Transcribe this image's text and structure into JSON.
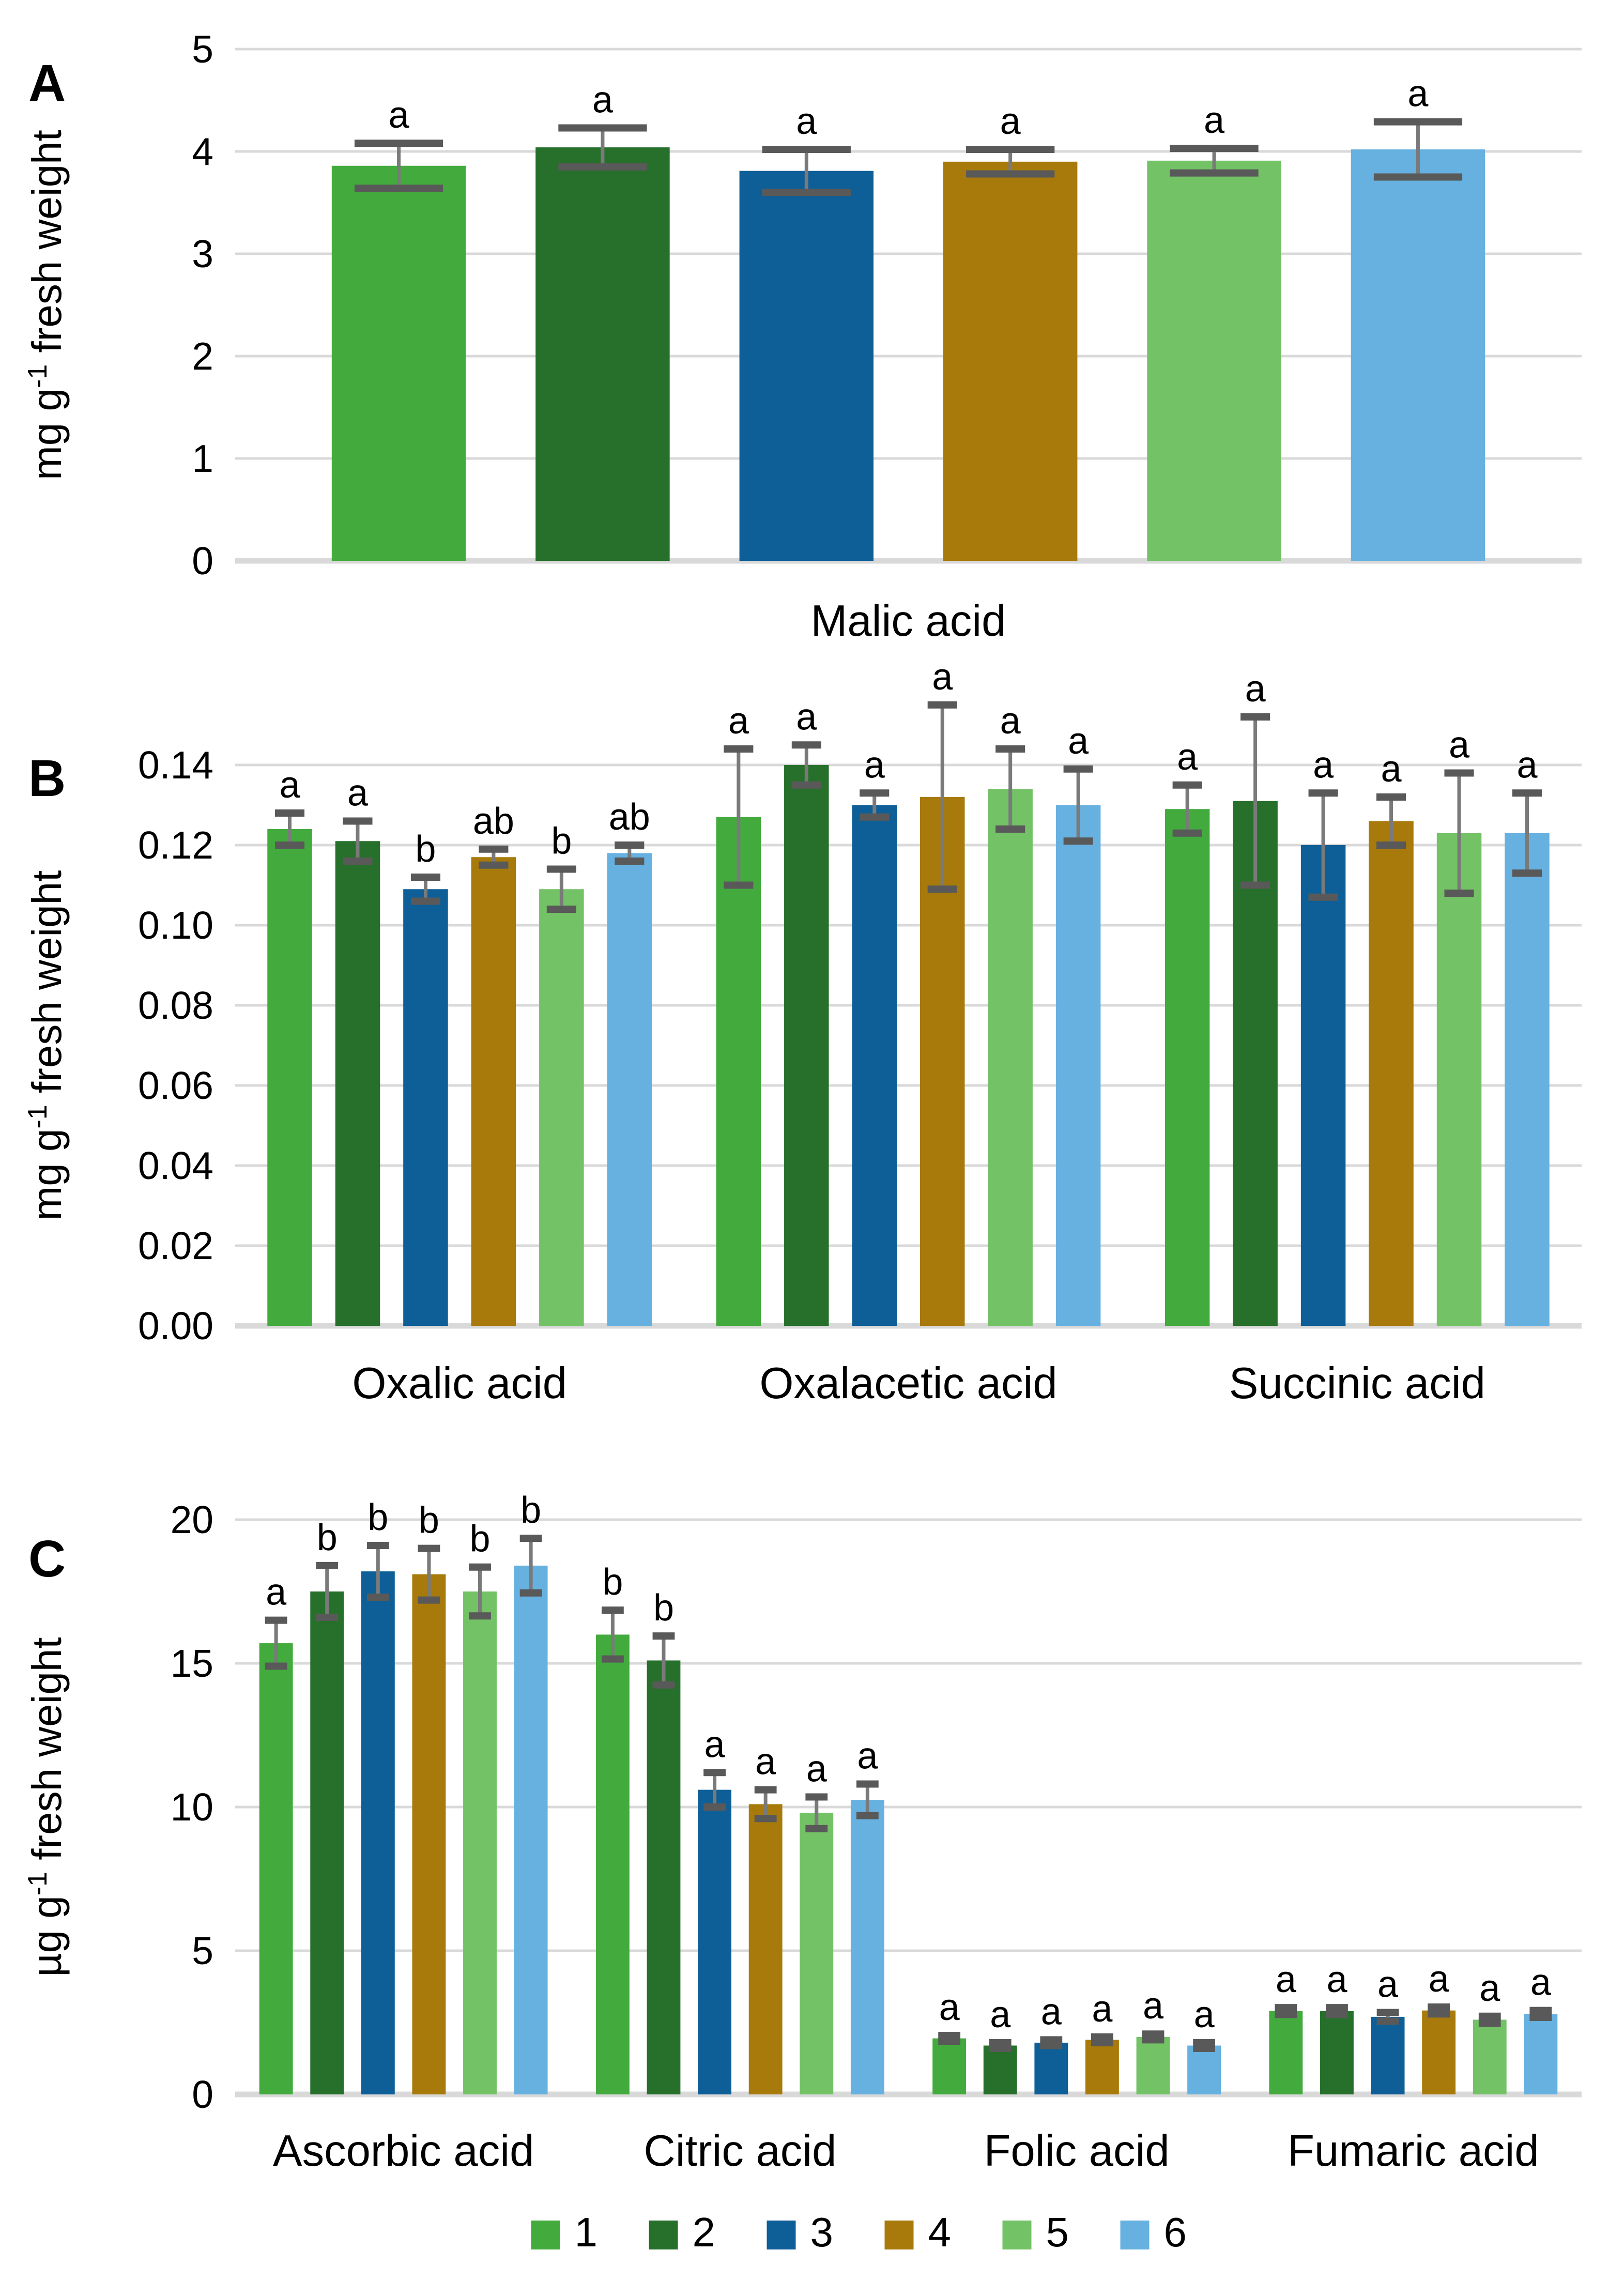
{
  "figure_title": "",
  "styles": {
    "background": "#ffffff",
    "grid_color": "#d9d9d9",
    "axis_line_color": "#d9d9d9",
    "error_line_color": "#7a7a7a",
    "error_cap_color": "#595959",
    "text_color": "#000000"
  },
  "legend": {
    "items": [
      {
        "label": "1",
        "color": "#43AB3E"
      },
      {
        "label": "2",
        "color": "#27702B"
      },
      {
        "label": "3",
        "color": "#0E5F97"
      },
      {
        "label": "4",
        "color": "#A77A0B"
      },
      {
        "label": "5",
        "color": "#73C266"
      },
      {
        "label": "6",
        "color": "#67B1E1"
      }
    ]
  },
  "chart_data": [
    {
      "type": "bar",
      "panel_label": "A",
      "ylabel": "mg g⁻¹ fresh weight",
      "ylabel_parts": {
        "prefix": "mg g",
        "sup": "-1",
        "suffix": " fresh weight"
      },
      "ylim": [
        0,
        5
      ],
      "yticks": [
        0,
        1,
        2,
        3,
        4,
        5
      ],
      "ytick_labels": [
        "0",
        "1",
        "2",
        "3",
        "4",
        "5"
      ],
      "grid": true,
      "legend_position": "none",
      "categories": [
        "Malic acid"
      ],
      "series": [
        {
          "name": "1",
          "values": [
            3.86
          ],
          "errors": [
            0.22
          ],
          "letters": [
            "a"
          ]
        },
        {
          "name": "2",
          "values": [
            4.04
          ],
          "errors": [
            0.19
          ],
          "letters": [
            "a"
          ]
        },
        {
          "name": "3",
          "values": [
            3.81
          ],
          "errors": [
            0.21
          ],
          "letters": [
            "a"
          ]
        },
        {
          "name": "4",
          "values": [
            3.9
          ],
          "errors": [
            0.12
          ],
          "letters": [
            "a"
          ]
        },
        {
          "name": "5",
          "values": [
            3.91
          ],
          "errors": [
            0.12
          ],
          "letters": [
            "a"
          ]
        },
        {
          "name": "6",
          "values": [
            4.02
          ],
          "errors": [
            0.27
          ],
          "letters": [
            "a"
          ]
        }
      ]
    },
    {
      "type": "bar",
      "panel_label": "B",
      "ylabel": "mg g⁻¹ fresh weight",
      "ylabel_parts": {
        "prefix": "mg g",
        "sup": "-1",
        "suffix": " fresh weight"
      },
      "ylim": [
        0,
        0.14
      ],
      "yticks": [
        0,
        0.02,
        0.04,
        0.06,
        0.08,
        0.1,
        0.12,
        0.14
      ],
      "ytick_labels": [
        "0.00",
        "0.02",
        "0.04",
        "0.06",
        "0.08",
        "0.10",
        "0.12",
        "0.14"
      ],
      "grid": true,
      "legend_position": "none",
      "categories": [
        "Oxalic acid",
        "Oxalacetic acid",
        "Succinic acid"
      ],
      "series": [
        {
          "name": "1",
          "values": [
            0.124,
            0.127,
            0.129
          ],
          "errors": [
            0.004,
            0.017,
            0.006
          ],
          "letters": [
            "a",
            "a",
            "a"
          ]
        },
        {
          "name": "2",
          "values": [
            0.121,
            0.14,
            0.131
          ],
          "errors": [
            0.005,
            0.005,
            0.021
          ],
          "letters": [
            "a",
            "a",
            "a"
          ]
        },
        {
          "name": "3",
          "values": [
            0.109,
            0.13,
            0.12
          ],
          "errors": [
            0.003,
            0.003,
            0.013
          ],
          "letters": [
            "b",
            "a",
            "a"
          ]
        },
        {
          "name": "4",
          "values": [
            0.117,
            0.132,
            0.126
          ],
          "errors": [
            0.002,
            0.023,
            0.006
          ],
          "letters": [
            "ab",
            "a",
            "a"
          ]
        },
        {
          "name": "5",
          "values": [
            0.109,
            0.134,
            0.123
          ],
          "errors": [
            0.005,
            0.01,
            0.015
          ],
          "letters": [
            "b",
            "a",
            "a"
          ]
        },
        {
          "name": "6",
          "values": [
            0.118,
            0.13,
            0.123
          ],
          "errors": [
            0.002,
            0.009,
            0.01
          ],
          "letters": [
            "ab",
            "a",
            "a"
          ]
        }
      ]
    },
    {
      "type": "bar",
      "panel_label": "C",
      "ylabel": "µg g⁻¹ fresh weight",
      "ylabel_parts": {
        "prefix": "µg g",
        "sup": "-1",
        "suffix": " fresh weight"
      },
      "ylim": [
        0,
        20
      ],
      "yticks": [
        0,
        5,
        10,
        15,
        20
      ],
      "ytick_labels": [
        "0",
        "5",
        "10",
        "15",
        "20"
      ],
      "grid": true,
      "legend_position": "bottom",
      "categories": [
        "Ascorbic acid",
        "Citric acid",
        "Folic acid",
        "Fumaric acid"
      ],
      "series": [
        {
          "name": "1",
          "values": [
            15.7,
            16.0,
            1.95,
            2.9
          ],
          "errors": [
            0.8,
            0.85,
            0.1,
            0.12
          ],
          "letters": [
            "a",
            "b",
            "a",
            "a"
          ]
        },
        {
          "name": "2",
          "values": [
            17.5,
            15.1,
            1.7,
            2.9
          ],
          "errors": [
            0.9,
            0.85,
            0.1,
            0.12
          ],
          "letters": [
            "b",
            "b",
            "a",
            "a"
          ]
        },
        {
          "name": "3",
          "values": [
            18.2,
            10.6,
            1.8,
            2.7
          ],
          "errors": [
            0.9,
            0.6,
            0.1,
            0.15
          ],
          "letters": [
            "b",
            "a",
            "a",
            "a"
          ]
        },
        {
          "name": "4",
          "values": [
            18.1,
            10.1,
            1.9,
            2.92
          ],
          "errors": [
            0.9,
            0.5,
            0.1,
            0.12
          ],
          "letters": [
            "b",
            "a",
            "a",
            "a"
          ]
        },
        {
          "name": "5",
          "values": [
            17.5,
            9.8,
            2.0,
            2.6
          ],
          "errors": [
            0.85,
            0.55,
            0.1,
            0.12
          ],
          "letters": [
            "b",
            "a",
            "a",
            "a"
          ]
        },
        {
          "name": "6",
          "values": [
            18.4,
            10.25,
            1.7,
            2.8
          ],
          "errors": [
            0.95,
            0.55,
            0.1,
            0.12
          ],
          "letters": [
            "b",
            "a",
            "a",
            "a"
          ]
        }
      ]
    }
  ]
}
